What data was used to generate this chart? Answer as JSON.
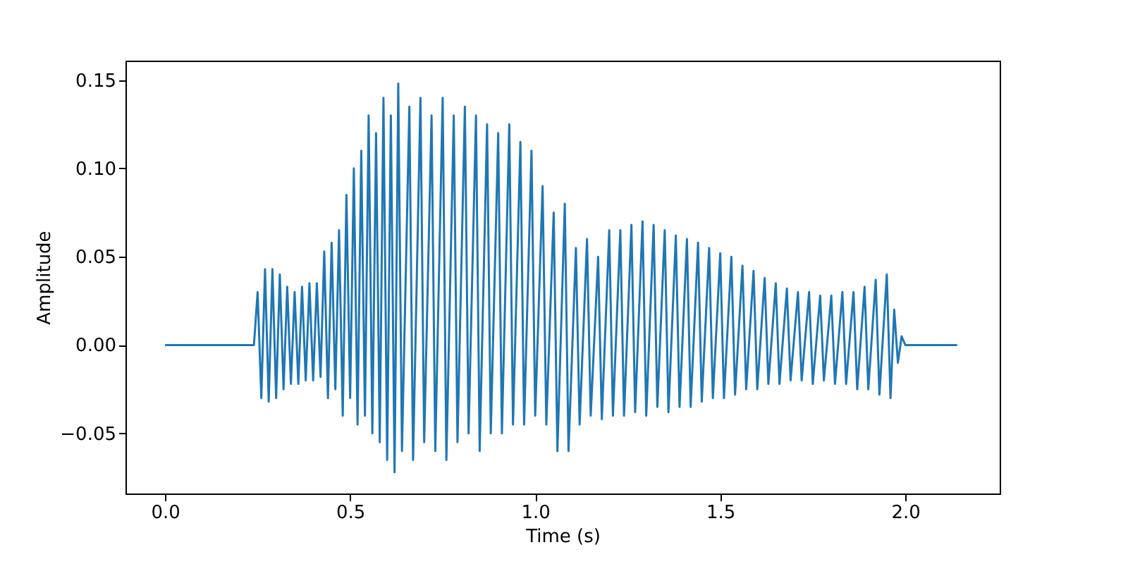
{
  "chart_data": {
    "type": "line",
    "xlabel": "Time (s)",
    "ylabel": "Amplitude",
    "x": [
      0.0,
      0.24,
      0.25,
      0.26,
      0.27,
      0.28,
      0.29,
      0.3,
      0.31,
      0.32,
      0.33,
      0.34,
      0.35,
      0.36,
      0.37,
      0.38,
      0.39,
      0.4,
      0.41,
      0.42,
      0.43,
      0.44,
      0.45,
      0.46,
      0.47,
      0.48,
      0.49,
      0.5,
      0.51,
      0.52,
      0.53,
      0.54,
      0.55,
      0.56,
      0.57,
      0.58,
      0.59,
      0.6,
      0.61,
      0.62,
      0.63,
      0.64,
      0.66,
      0.67,
      0.69,
      0.7,
      0.72,
      0.73,
      0.75,
      0.76,
      0.78,
      0.79,
      0.81,
      0.82,
      0.84,
      0.85,
      0.87,
      0.88,
      0.9,
      0.91,
      0.93,
      0.94,
      0.96,
      0.97,
      0.99,
      1.0,
      1.02,
      1.03,
      1.05,
      1.06,
      1.08,
      1.09,
      1.11,
      1.12,
      1.14,
      1.15,
      1.17,
      1.18,
      1.2,
      1.21,
      1.23,
      1.24,
      1.26,
      1.27,
      1.29,
      1.3,
      1.32,
      1.33,
      1.35,
      1.36,
      1.38,
      1.39,
      1.41,
      1.42,
      1.44,
      1.45,
      1.47,
      1.48,
      1.5,
      1.51,
      1.53,
      1.54,
      1.56,
      1.57,
      1.59,
      1.6,
      1.62,
      1.63,
      1.65,
      1.66,
      1.68,
      1.69,
      1.71,
      1.72,
      1.74,
      1.75,
      1.77,
      1.78,
      1.8,
      1.81,
      1.83,
      1.84,
      1.86,
      1.87,
      1.89,
      1.9,
      1.92,
      1.93,
      1.95,
      1.96,
      1.97,
      1.98,
      1.99,
      2.0,
      2.14
    ],
    "series": [
      {
        "color": "#1f77b4",
        "values": [
          0,
          0,
          0.03,
          -0.03,
          0.043,
          -0.032,
          0.043,
          -0.03,
          0.04,
          -0.025,
          0.033,
          -0.022,
          0.03,
          -0.022,
          0.033,
          -0.02,
          0.035,
          -0.02,
          0.035,
          -0.018,
          0.053,
          -0.03,
          0.058,
          -0.025,
          0.065,
          -0.04,
          0.085,
          -0.03,
          0.1,
          -0.045,
          0.11,
          -0.04,
          0.13,
          -0.05,
          0.12,
          -0.055,
          0.14,
          -0.065,
          0.13,
          -0.072,
          0.148,
          -0.06,
          0.135,
          -0.065,
          0.14,
          -0.055,
          0.13,
          -0.06,
          0.14,
          -0.065,
          0.13,
          -0.055,
          0.135,
          -0.05,
          0.13,
          -0.06,
          0.125,
          -0.05,
          0.12,
          -0.05,
          0.125,
          -0.045,
          0.115,
          -0.045,
          0.11,
          -0.04,
          0.09,
          -0.045,
          0.075,
          -0.06,
          0.08,
          -0.06,
          0.055,
          -0.045,
          0.06,
          -0.04,
          0.05,
          -0.042,
          0.065,
          -0.04,
          0.065,
          -0.04,
          0.068,
          -0.038,
          0.07,
          -0.04,
          0.068,
          -0.035,
          0.065,
          -0.038,
          0.062,
          -0.035,
          0.06,
          -0.035,
          0.058,
          -0.032,
          0.055,
          -0.03,
          0.052,
          -0.03,
          0.05,
          -0.028,
          0.045,
          -0.025,
          0.042,
          -0.025,
          0.038,
          -0.022,
          0.035,
          -0.022,
          0.032,
          -0.02,
          0.03,
          -0.02,
          0.03,
          -0.022,
          0.028,
          -0.02,
          0.028,
          -0.022,
          0.03,
          -0.022,
          0.03,
          -0.025,
          0.033,
          -0.025,
          0.037,
          -0.028,
          0.04,
          -0.03,
          0.02,
          -0.01,
          0.005,
          0,
          0
        ]
      }
    ],
    "xlim": [
      -0.107,
      2.255
    ],
    "xticks": [
      {
        "value": 0,
        "label": "0.0"
      },
      {
        "value": 0.5,
        "label": "0.5"
      },
      {
        "value": 1,
        "label": "1.0"
      },
      {
        "value": 1.5,
        "label": "1.5"
      },
      {
        "value": 2,
        "label": "2.0"
      }
    ],
    "ylim": [
      -0.084,
      0.161
    ],
    "yticks": [
      {
        "value": -0.05,
        "label": "−0.05"
      },
      {
        "value": 0,
        "label": "0.00"
      },
      {
        "value": 0.05,
        "label": "0.05"
      },
      {
        "value": 0.1,
        "label": "0.10"
      },
      {
        "value": 0.15,
        "label": "0.15"
      }
    ],
    "grid": false,
    "marker": "none",
    "line_style": "solid"
  }
}
